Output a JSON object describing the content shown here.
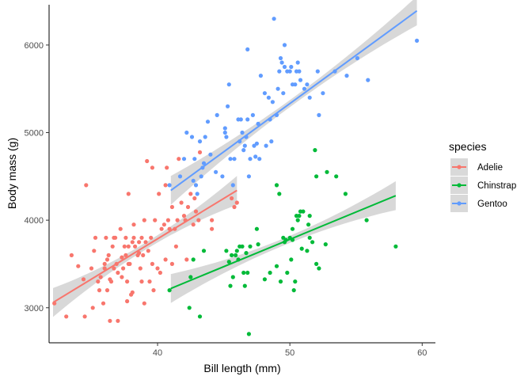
{
  "chart_data": {
    "type": "scatter",
    "xlabel": "Bill length (mm)",
    "ylabel": "Body mass (g)",
    "xlim": [
      31.8,
      61.0
    ],
    "ylim": [
      2600,
      6460
    ],
    "x_ticks": [
      40,
      50,
      60
    ],
    "y_ticks": [
      3000,
      4000,
      5000,
      6000
    ],
    "grid": false,
    "legend": {
      "title": "species",
      "placement": "right"
    },
    "series": [
      {
        "name": "Adelie",
        "color": "#F8766D",
        "points": [
          [
            32.2,
            3050
          ],
          [
            33.1,
            2900
          ],
          [
            33.5,
            3600
          ],
          [
            34.0,
            3475
          ],
          [
            34.4,
            3325
          ],
          [
            34.5,
            2900
          ],
          [
            34.6,
            4400
          ],
          [
            35.0,
            3450
          ],
          [
            35.1,
            3000
          ],
          [
            35.3,
            3800
          ],
          [
            35.5,
            3300
          ],
          [
            35.6,
            3200
          ],
          [
            35.7,
            3350
          ],
          [
            35.9,
            3050
          ],
          [
            36.0,
            3500
          ],
          [
            36.0,
            3450
          ],
          [
            36.2,
            3550
          ],
          [
            36.2,
            3200
          ],
          [
            36.3,
            3600
          ],
          [
            36.4,
            2850
          ],
          [
            36.4,
            3325
          ],
          [
            36.5,
            3300
          ],
          [
            36.6,
            3700
          ],
          [
            36.7,
            3800
          ],
          [
            36.7,
            3450
          ],
          [
            36.8,
            3800
          ],
          [
            36.9,
            3500
          ],
          [
            37.0,
            3400
          ],
          [
            37.0,
            2850
          ],
          [
            37.2,
            3900
          ],
          [
            37.3,
            3575
          ],
          [
            37.3,
            3350
          ],
          [
            37.5,
            3700
          ],
          [
            37.6,
            3800
          ],
          [
            37.6,
            3600
          ],
          [
            37.7,
            3075
          ],
          [
            37.7,
            3300
          ],
          [
            37.8,
            4300
          ],
          [
            37.8,
            3700
          ],
          [
            37.8,
            3500
          ],
          [
            37.9,
            3500
          ],
          [
            38.1,
            3750
          ],
          [
            38.1,
            3175
          ],
          [
            38.2,
            3800
          ],
          [
            38.2,
            3950
          ],
          [
            38.3,
            3700
          ],
          [
            38.5,
            3600
          ],
          [
            38.6,
            3750
          ],
          [
            38.6,
            3625
          ],
          [
            38.7,
            3450
          ],
          [
            38.8,
            3800
          ],
          [
            38.8,
            3300
          ],
          [
            38.9,
            3600
          ],
          [
            39.0,
            4000
          ],
          [
            39.0,
            3050
          ],
          [
            39.1,
            3750
          ],
          [
            39.2,
            4675
          ],
          [
            39.3,
            3650
          ],
          [
            39.5,
            3800
          ],
          [
            39.6,
            3500
          ],
          [
            39.6,
            4600
          ],
          [
            39.7,
            3200
          ],
          [
            39.8,
            4000
          ],
          [
            40.1,
            4300
          ],
          [
            40.2,
            3400
          ],
          [
            40.3,
            3900
          ],
          [
            40.5,
            3950
          ],
          [
            40.6,
            3550
          ],
          [
            40.6,
            4400
          ],
          [
            40.7,
            4600
          ],
          [
            40.8,
            4000
          ],
          [
            40.9,
            3900
          ],
          [
            41.1,
            4150
          ],
          [
            41.1,
            3500
          ],
          [
            41.3,
            3900
          ],
          [
            41.4,
            3700
          ],
          [
            41.5,
            4000
          ],
          [
            41.6,
            4700
          ],
          [
            41.8,
            4200
          ],
          [
            42.0,
            4050
          ],
          [
            42.1,
            4000
          ],
          [
            42.2,
            3550
          ],
          [
            42.3,
            4150
          ],
          [
            42.5,
            4300
          ],
          [
            42.7,
            3950
          ],
          [
            42.8,
            4250
          ],
          [
            42.9,
            4100
          ],
          [
            43.1,
            4000
          ],
          [
            43.2,
            4775
          ],
          [
            44.1,
            3900
          ],
          [
            44.1,
            4000
          ],
          [
            45.6,
            4250
          ],
          [
            45.8,
            4150
          ],
          [
            46.0,
            4200
          ],
          [
            35.2,
            3650
          ],
          [
            36.1,
            3800
          ],
          [
            37.4,
            3450
          ],
          [
            38.0,
            3150
          ],
          [
            39.4,
            3300
          ],
          [
            40.0,
            3450
          ]
        ],
        "fit": {
          "x_range": [
            32.1,
            46.0
          ],
          "y_range": [
            3060,
            4340
          ]
        }
      },
      {
        "name": "Chinstrap",
        "color": "#00BA38",
        "points": [
          [
            40.9,
            3200
          ],
          [
            42.4,
            3000
          ],
          [
            42.5,
            3350
          ],
          [
            42.7,
            3550
          ],
          [
            43.2,
            2900
          ],
          [
            43.5,
            3650
          ],
          [
            45.2,
            3650
          ],
          [
            45.4,
            3525
          ],
          [
            45.5,
            3250
          ],
          [
            45.6,
            3600
          ],
          [
            45.7,
            3350
          ],
          [
            45.9,
            3600
          ],
          [
            46.0,
            3650
          ],
          [
            46.1,
            3550
          ],
          [
            46.2,
            3700
          ],
          [
            46.4,
            3700
          ],
          [
            46.5,
            3400
          ],
          [
            46.6,
            3250
          ],
          [
            46.7,
            3625
          ],
          [
            46.8,
            3400
          ],
          [
            46.9,
            2700
          ],
          [
            47.0,
            3700
          ],
          [
            47.5,
            3900
          ],
          [
            47.6,
            3725
          ],
          [
            48.1,
            3325
          ],
          [
            48.5,
            3400
          ],
          [
            49.0,
            3475
          ],
          [
            49.2,
            4300
          ],
          [
            49.3,
            3300
          ],
          [
            49.5,
            3800
          ],
          [
            49.6,
            3750
          ],
          [
            49.7,
            3775
          ],
          [
            49.8,
            3400
          ],
          [
            50.0,
            3800
          ],
          [
            50.1,
            3550
          ],
          [
            50.2,
            3900
          ],
          [
            50.3,
            3200
          ],
          [
            50.4,
            3300
          ],
          [
            50.5,
            4050
          ],
          [
            50.6,
            4000
          ],
          [
            50.7,
            4050
          ],
          [
            50.8,
            4100
          ],
          [
            50.9,
            3675
          ],
          [
            51.0,
            4100
          ],
          [
            51.3,
            3650
          ],
          [
            51.4,
            3950
          ],
          [
            51.5,
            3800
          ],
          [
            51.7,
            3750
          ],
          [
            51.9,
            4800
          ],
          [
            52.0,
            4500
          ],
          [
            52.2,
            3450
          ],
          [
            52.7,
            3725
          ],
          [
            52.8,
            4550
          ],
          [
            53.5,
            4500
          ],
          [
            54.2,
            4300
          ],
          [
            55.8,
            4000
          ],
          [
            58.0,
            3700
          ],
          [
            50.2,
            3775
          ],
          [
            49.0,
            4400
          ],
          [
            51.5,
            4050
          ],
          [
            52.0,
            3500
          ]
        ],
        "fit": {
          "x_range": [
            41.0,
            58.0
          ],
          "y_range": [
            3220,
            4280
          ]
        }
      },
      {
        "name": "Gentoo",
        "color": "#619CFF",
        "points": [
          [
            40.9,
            4400
          ],
          [
            41.7,
            4500
          ],
          [
            42.0,
            4700
          ],
          [
            42.2,
            5000
          ],
          [
            42.6,
            4950
          ],
          [
            42.7,
            4450
          ],
          [
            42.8,
            4700
          ],
          [
            42.9,
            4400
          ],
          [
            43.2,
            4900
          ],
          [
            43.3,
            4500
          ],
          [
            43.4,
            4600
          ],
          [
            43.5,
            4650
          ],
          [
            43.6,
            4950
          ],
          [
            43.8,
            5125
          ],
          [
            44.0,
            4750
          ],
          [
            44.4,
            4550
          ],
          [
            44.5,
            5200
          ],
          [
            44.9,
            4500
          ],
          [
            45.1,
            5000
          ],
          [
            45.2,
            4950
          ],
          [
            45.3,
            5300
          ],
          [
            45.4,
            5550
          ],
          [
            45.5,
            4700
          ],
          [
            45.7,
            4400
          ],
          [
            45.8,
            4700
          ],
          [
            46.1,
            5150
          ],
          [
            46.2,
            4900
          ],
          [
            46.3,
            5150
          ],
          [
            46.4,
            5000
          ],
          [
            46.5,
            4800
          ],
          [
            46.6,
            4850
          ],
          [
            46.7,
            4950
          ],
          [
            46.8,
            5150
          ],
          [
            46.9,
            4500
          ],
          [
            47.2,
            5200
          ],
          [
            47.3,
            4850
          ],
          [
            47.4,
            4725
          ],
          [
            47.5,
            4875
          ],
          [
            47.6,
            5100
          ],
          [
            47.7,
            4700
          ],
          [
            47.8,
            5650
          ],
          [
            48.1,
            5450
          ],
          [
            48.2,
            4850
          ],
          [
            48.4,
            5400
          ],
          [
            48.5,
            5150
          ],
          [
            48.7,
            5350
          ],
          [
            48.8,
            6300
          ],
          [
            49.0,
            5200
          ],
          [
            49.1,
            5500
          ],
          [
            49.2,
            5700
          ],
          [
            49.3,
            5850
          ],
          [
            49.4,
            5800
          ],
          [
            49.5,
            5450
          ],
          [
            49.6,
            5750
          ],
          [
            49.8,
            5700
          ],
          [
            50.0,
            5700
          ],
          [
            50.1,
            5750
          ],
          [
            50.2,
            5550
          ],
          [
            50.4,
            5550
          ],
          [
            50.5,
            5700
          ],
          [
            50.7,
            5700
          ],
          [
            50.8,
            5600
          ],
          [
            51.1,
            5500
          ],
          [
            51.3,
            5550
          ],
          [
            51.5,
            5400
          ],
          [
            52.1,
            5700
          ],
          [
            52.2,
            5200
          ],
          [
            52.5,
            5450
          ],
          [
            53.4,
            5700
          ],
          [
            54.3,
            5650
          ],
          [
            55.1,
            5850
          ],
          [
            55.9,
            5600
          ],
          [
            59.6,
            6050
          ],
          [
            46.8,
            5950
          ],
          [
            49.6,
            6000
          ],
          [
            45.1,
            5050
          ],
          [
            47.0,
            4700
          ],
          [
            48.6,
            4900
          ],
          [
            50.6,
            5800
          ],
          [
            43.0,
            4300
          ]
        ],
        "fit": {
          "x_range": [
            41.0,
            59.6
          ],
          "y_range": [
            4340,
            6390
          ]
        }
      }
    ]
  }
}
